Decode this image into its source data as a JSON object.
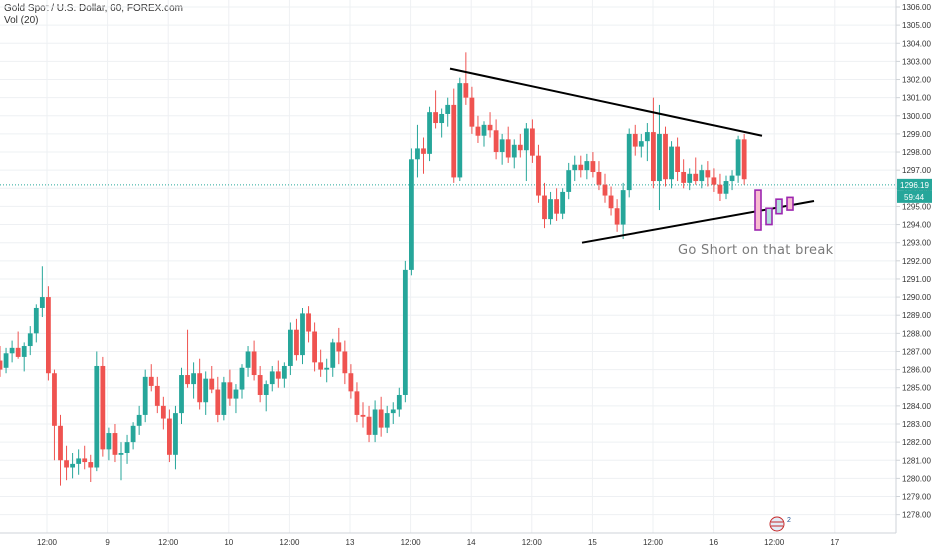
{
  "header": {
    "symbol": "Gold Spot / U.S. Dollar, 60, FOREX.com",
    "indicator": "Vol (20)"
  },
  "logo": {
    "text": "2"
  },
  "colors": {
    "up": "#26a69a",
    "down": "#ef5350",
    "grid": "#eef0f3",
    "axis": "#cfd3d8",
    "current_price": "#26a69a",
    "trendline": "#000000",
    "projection_border": "#9c27b0"
  },
  "chart_data": {
    "type": "candlestick",
    "ylim": [
      1277.5,
      1306.5
    ],
    "y_ticks": [
      "1306.00",
      "1305.00",
      "1304.00",
      "1303.00",
      "1302.00",
      "1301.00",
      "1300.00",
      "1299.00",
      "1298.00",
      "1297.00",
      "1296.00",
      "1295.00",
      "1294.00",
      "1293.00",
      "1292.00",
      "1291.00",
      "1290.00",
      "1289.00",
      "1288.00",
      "1287.00",
      "1286.00",
      "1285.00",
      "1284.00",
      "1283.00",
      "1282.00",
      "1281.00",
      "1280.00",
      "1279.00",
      "1278.00"
    ],
    "x_ticks": [
      "12:00",
      "9",
      "12:00",
      "10",
      "12:00",
      "13",
      "12:00",
      "14",
      "12:00",
      "15",
      "12:00",
      "16",
      "12:00",
      "17"
    ],
    "grid": true,
    "current_price": {
      "value": 1296.19,
      "label": "1296.19",
      "countdown": "59:44"
    },
    "trendlines": [
      {
        "name": "upper",
        "from": [
          0,
          1302.6
        ],
        "to": [
          127,
          1298.9
        ]
      },
      {
        "name": "lower",
        "from": [
          96,
          1293.0
        ],
        "to": [
          135,
          1295.3
        ]
      }
    ],
    "projection": [
      {
        "open": 1295.9,
        "close": 1293.7,
        "high": 1295.9,
        "low": 1293.7
      },
      {
        "open": 1294.0,
        "close": 1294.9,
        "high": 1294.9,
        "low": 1294.0
      },
      {
        "open": 1294.6,
        "close": 1295.4,
        "high": 1295.4,
        "low": 1294.6
      },
      {
        "open": 1295.5,
        "close": 1294.8,
        "high": 1295.5,
        "low": 1294.8
      }
    ],
    "annotation": "Go Short on that break",
    "candles": [
      {
        "o": 1286.5,
        "h": 1287.3,
        "l": 1285.6,
        "c": 1286.0
      },
      {
        "o": 1286.1,
        "h": 1287.2,
        "l": 1285.8,
        "c": 1286.9
      },
      {
        "o": 1286.9,
        "h": 1287.6,
        "l": 1286.4,
        "c": 1287.2
      },
      {
        "o": 1287.2,
        "h": 1288.1,
        "l": 1286.6,
        "c": 1286.7
      },
      {
        "o": 1286.7,
        "h": 1287.5,
        "l": 1285.9,
        "c": 1287.3
      },
      {
        "o": 1287.3,
        "h": 1288.4,
        "l": 1286.8,
        "c": 1288.0
      },
      {
        "o": 1288.0,
        "h": 1289.6,
        "l": 1287.5,
        "c": 1289.4
      },
      {
        "o": 1289.4,
        "h": 1291.7,
        "l": 1288.9,
        "c": 1290.0
      },
      {
        "o": 1290.0,
        "h": 1290.6,
        "l": 1285.4,
        "c": 1285.8
      },
      {
        "o": 1285.8,
        "h": 1286.0,
        "l": 1281.0,
        "c": 1282.9
      },
      {
        "o": 1282.9,
        "h": 1283.5,
        "l": 1279.6,
        "c": 1281.0
      },
      {
        "o": 1281.0,
        "h": 1281.8,
        "l": 1279.9,
        "c": 1280.6
      },
      {
        "o": 1280.6,
        "h": 1281.4,
        "l": 1280.0,
        "c": 1280.8
      },
      {
        "o": 1280.8,
        "h": 1281.6,
        "l": 1280.2,
        "c": 1281.1
      },
      {
        "o": 1281.1,
        "h": 1281.8,
        "l": 1280.5,
        "c": 1280.9
      },
      {
        "o": 1280.9,
        "h": 1281.3,
        "l": 1279.8,
        "c": 1280.6
      },
      {
        "o": 1280.6,
        "h": 1287.0,
        "l": 1280.4,
        "c": 1286.2
      },
      {
        "o": 1286.2,
        "h": 1286.7,
        "l": 1281.2,
        "c": 1281.6
      },
      {
        "o": 1281.6,
        "h": 1282.8,
        "l": 1281.0,
        "c": 1282.5
      },
      {
        "o": 1282.5,
        "h": 1283.0,
        "l": 1280.9,
        "c": 1281.3
      },
      {
        "o": 1281.3,
        "h": 1282.0,
        "l": 1279.9,
        "c": 1281.4
      },
      {
        "o": 1281.4,
        "h": 1282.4,
        "l": 1280.8,
        "c": 1282.0
      },
      {
        "o": 1282.0,
        "h": 1283.1,
        "l": 1281.6,
        "c": 1282.9
      },
      {
        "o": 1282.9,
        "h": 1284.0,
        "l": 1282.4,
        "c": 1283.5
      },
      {
        "o": 1283.5,
        "h": 1286.0,
        "l": 1283.1,
        "c": 1285.6
      },
      {
        "o": 1285.6,
        "h": 1286.3,
        "l": 1284.8,
        "c": 1285.1
      },
      {
        "o": 1285.1,
        "h": 1285.6,
        "l": 1283.6,
        "c": 1284.0
      },
      {
        "o": 1284.0,
        "h": 1284.5,
        "l": 1282.7,
        "c": 1283.3
      },
      {
        "o": 1283.3,
        "h": 1283.8,
        "l": 1280.9,
        "c": 1281.3
      },
      {
        "o": 1281.3,
        "h": 1284.0,
        "l": 1280.5,
        "c": 1283.6
      },
      {
        "o": 1283.6,
        "h": 1286.1,
        "l": 1283.0,
        "c": 1285.7
      },
      {
        "o": 1285.7,
        "h": 1288.2,
        "l": 1285.0,
        "c": 1285.2
      },
      {
        "o": 1285.2,
        "h": 1286.4,
        "l": 1284.4,
        "c": 1285.8
      },
      {
        "o": 1285.8,
        "h": 1286.6,
        "l": 1283.8,
        "c": 1284.2
      },
      {
        "o": 1284.2,
        "h": 1285.9,
        "l": 1283.5,
        "c": 1285.5
      },
      {
        "o": 1285.5,
        "h": 1286.2,
        "l": 1284.7,
        "c": 1284.9
      },
      {
        "o": 1284.9,
        "h": 1285.6,
        "l": 1283.1,
        "c": 1283.5
      },
      {
        "o": 1283.5,
        "h": 1285.6,
        "l": 1283.2,
        "c": 1285.3
      },
      {
        "o": 1285.3,
        "h": 1286.0,
        "l": 1284.0,
        "c": 1284.4
      },
      {
        "o": 1284.4,
        "h": 1285.2,
        "l": 1283.6,
        "c": 1284.9
      },
      {
        "o": 1284.9,
        "h": 1286.3,
        "l": 1284.4,
        "c": 1286.1
      },
      {
        "o": 1286.1,
        "h": 1287.3,
        "l": 1285.6,
        "c": 1287.0
      },
      {
        "o": 1287.0,
        "h": 1287.6,
        "l": 1285.4,
        "c": 1285.7
      },
      {
        "o": 1285.7,
        "h": 1286.2,
        "l": 1284.2,
        "c": 1284.6
      },
      {
        "o": 1284.6,
        "h": 1285.4,
        "l": 1283.7,
        "c": 1285.2
      },
      {
        "o": 1285.2,
        "h": 1286.2,
        "l": 1284.8,
        "c": 1285.9
      },
      {
        "o": 1285.9,
        "h": 1286.5,
        "l": 1285.0,
        "c": 1285.5
      },
      {
        "o": 1285.5,
        "h": 1286.4,
        "l": 1285.0,
        "c": 1286.2
      },
      {
        "o": 1286.2,
        "h": 1288.6,
        "l": 1285.7,
        "c": 1288.2
      },
      {
        "o": 1288.2,
        "h": 1288.8,
        "l": 1286.5,
        "c": 1286.8
      },
      {
        "o": 1286.8,
        "h": 1289.4,
        "l": 1286.3,
        "c": 1289.1
      },
      {
        "o": 1289.1,
        "h": 1289.5,
        "l": 1287.5,
        "c": 1288.1
      },
      {
        "o": 1288.1,
        "h": 1288.6,
        "l": 1285.9,
        "c": 1286.4
      },
      {
        "o": 1286.4,
        "h": 1287.1,
        "l": 1285.6,
        "c": 1286.0
      },
      {
        "o": 1286.0,
        "h": 1286.6,
        "l": 1285.3,
        "c": 1286.1
      },
      {
        "o": 1286.1,
        "h": 1287.7,
        "l": 1285.6,
        "c": 1287.5
      },
      {
        "o": 1287.5,
        "h": 1288.3,
        "l": 1286.3,
        "c": 1287.0
      },
      {
        "o": 1287.0,
        "h": 1287.6,
        "l": 1285.2,
        "c": 1285.8
      },
      {
        "o": 1285.8,
        "h": 1286.3,
        "l": 1284.4,
        "c": 1284.8
      },
      {
        "o": 1284.8,
        "h": 1285.3,
        "l": 1283.1,
        "c": 1283.5
      },
      {
        "o": 1283.5,
        "h": 1284.2,
        "l": 1282.8,
        "c": 1283.4
      },
      {
        "o": 1283.4,
        "h": 1284.0,
        "l": 1282.0,
        "c": 1282.4
      },
      {
        "o": 1282.4,
        "h": 1284.3,
        "l": 1282.0,
        "c": 1283.8
      },
      {
        "o": 1283.8,
        "h": 1284.5,
        "l": 1282.3,
        "c": 1282.8
      },
      {
        "o": 1282.8,
        "h": 1284.0,
        "l": 1282.5,
        "c": 1283.6
      },
      {
        "o": 1283.6,
        "h": 1284.2,
        "l": 1283.0,
        "c": 1283.8
      },
      {
        "o": 1283.8,
        "h": 1285.0,
        "l": 1283.4,
        "c": 1284.6
      },
      {
        "o": 1284.6,
        "h": 1292.0,
        "l": 1284.2,
        "c": 1291.5
      },
      {
        "o": 1291.5,
        "h": 1298.2,
        "l": 1291.2,
        "c": 1297.6
      },
      {
        "o": 1297.6,
        "h": 1299.5,
        "l": 1296.6,
        "c": 1298.2
      },
      {
        "o": 1298.2,
        "h": 1298.8,
        "l": 1296.8,
        "c": 1297.9
      },
      {
        "o": 1297.9,
        "h": 1300.5,
        "l": 1297.5,
        "c": 1300.2
      },
      {
        "o": 1300.2,
        "h": 1301.4,
        "l": 1299.3,
        "c": 1299.6
      },
      {
        "o": 1299.6,
        "h": 1300.4,
        "l": 1298.8,
        "c": 1300.1
      },
      {
        "o": 1300.1,
        "h": 1301.0,
        "l": 1299.4,
        "c": 1300.6
      },
      {
        "o": 1300.6,
        "h": 1301.5,
        "l": 1296.3,
        "c": 1296.6
      },
      {
        "o": 1296.6,
        "h": 1302.1,
        "l": 1296.4,
        "c": 1301.8
      },
      {
        "o": 1301.8,
        "h": 1303.5,
        "l": 1300.6,
        "c": 1301.0
      },
      {
        "o": 1301.0,
        "h": 1301.6,
        "l": 1299.0,
        "c": 1299.4
      },
      {
        "o": 1299.4,
        "h": 1300.0,
        "l": 1298.5,
        "c": 1298.9
      },
      {
        "o": 1298.9,
        "h": 1299.7,
        "l": 1298.3,
        "c": 1299.5
      },
      {
        "o": 1299.5,
        "h": 1300.2,
        "l": 1298.8,
        "c": 1299.2
      },
      {
        "o": 1299.2,
        "h": 1299.8,
        "l": 1297.6,
        "c": 1298.0
      },
      {
        "o": 1298.0,
        "h": 1299.0,
        "l": 1297.3,
        "c": 1298.7
      },
      {
        "o": 1298.7,
        "h": 1299.4,
        "l": 1297.4,
        "c": 1297.7
      },
      {
        "o": 1297.7,
        "h": 1298.7,
        "l": 1297.1,
        "c": 1298.4
      },
      {
        "o": 1298.4,
        "h": 1299.0,
        "l": 1297.7,
        "c": 1298.1
      },
      {
        "o": 1298.1,
        "h": 1299.6,
        "l": 1296.4,
        "c": 1299.3
      },
      {
        "o": 1299.3,
        "h": 1299.8,
        "l": 1297.4,
        "c": 1297.8
      },
      {
        "o": 1297.8,
        "h": 1298.4,
        "l": 1295.2,
        "c": 1295.6
      },
      {
        "o": 1295.6,
        "h": 1296.3,
        "l": 1293.8,
        "c": 1294.3
      },
      {
        "o": 1294.3,
        "h": 1295.8,
        "l": 1294.0,
        "c": 1295.4
      },
      {
        "o": 1295.4,
        "h": 1296.0,
        "l": 1294.2,
        "c": 1294.6
      },
      {
        "o": 1294.6,
        "h": 1296.0,
        "l": 1294.3,
        "c": 1295.8
      },
      {
        "o": 1295.8,
        "h": 1297.4,
        "l": 1295.4,
        "c": 1297.0
      },
      {
        "o": 1297.0,
        "h": 1297.8,
        "l": 1296.4,
        "c": 1297.3
      },
      {
        "o": 1297.3,
        "h": 1297.8,
        "l": 1296.6,
        "c": 1297.0
      },
      {
        "o": 1297.0,
        "h": 1297.9,
        "l": 1296.5,
        "c": 1297.5
      },
      {
        "o": 1297.5,
        "h": 1298.0,
        "l": 1296.6,
        "c": 1296.9
      },
      {
        "o": 1296.9,
        "h": 1297.5,
        "l": 1295.9,
        "c": 1296.2
      },
      {
        "o": 1296.2,
        "h": 1296.8,
        "l": 1295.2,
        "c": 1295.6
      },
      {
        "o": 1295.6,
        "h": 1296.1,
        "l": 1294.5,
        "c": 1294.9
      },
      {
        "o": 1294.9,
        "h": 1295.4,
        "l": 1293.6,
        "c": 1294.0
      },
      {
        "o": 1294.0,
        "h": 1296.3,
        "l": 1293.2,
        "c": 1295.9
      },
      {
        "o": 1295.9,
        "h": 1299.3,
        "l": 1295.5,
        "c": 1299.0
      },
      {
        "o": 1299.0,
        "h": 1299.5,
        "l": 1297.8,
        "c": 1298.3
      },
      {
        "o": 1298.3,
        "h": 1299.0,
        "l": 1297.7,
        "c": 1298.6
      },
      {
        "o": 1298.6,
        "h": 1299.6,
        "l": 1297.5,
        "c": 1299.1
      },
      {
        "o": 1299.1,
        "h": 1301.0,
        "l": 1296.0,
        "c": 1296.4
      },
      {
        "o": 1296.4,
        "h": 1300.6,
        "l": 1294.8,
        "c": 1299.0
      },
      {
        "o": 1299.0,
        "h": 1299.4,
        "l": 1296.1,
        "c": 1296.5
      },
      {
        "o": 1296.5,
        "h": 1298.6,
        "l": 1296.0,
        "c": 1298.3
      },
      {
        "o": 1298.3,
        "h": 1298.8,
        "l": 1296.4,
        "c": 1296.9
      },
      {
        "o": 1296.9,
        "h": 1297.6,
        "l": 1296.0,
        "c": 1296.3
      },
      {
        "o": 1296.3,
        "h": 1297.1,
        "l": 1295.9,
        "c": 1296.8
      },
      {
        "o": 1296.8,
        "h": 1297.7,
        "l": 1296.2,
        "c": 1296.4
      },
      {
        "o": 1296.4,
        "h": 1297.3,
        "l": 1296.0,
        "c": 1297.0
      },
      {
        "o": 1297.0,
        "h": 1297.5,
        "l": 1296.1,
        "c": 1296.6
      },
      {
        "o": 1296.6,
        "h": 1297.1,
        "l": 1295.8,
        "c": 1296.2
      },
      {
        "o": 1296.2,
        "h": 1296.8,
        "l": 1295.3,
        "c": 1295.7
      },
      {
        "o": 1295.7,
        "h": 1296.7,
        "l": 1295.4,
        "c": 1296.4
      },
      {
        "o": 1296.4,
        "h": 1297.0,
        "l": 1295.9,
        "c": 1296.7
      },
      {
        "o": 1296.7,
        "h": 1298.9,
        "l": 1296.3,
        "c": 1298.7
      },
      {
        "o": 1298.7,
        "h": 1299.0,
        "l": 1296.2,
        "c": 1296.5
      }
    ]
  }
}
